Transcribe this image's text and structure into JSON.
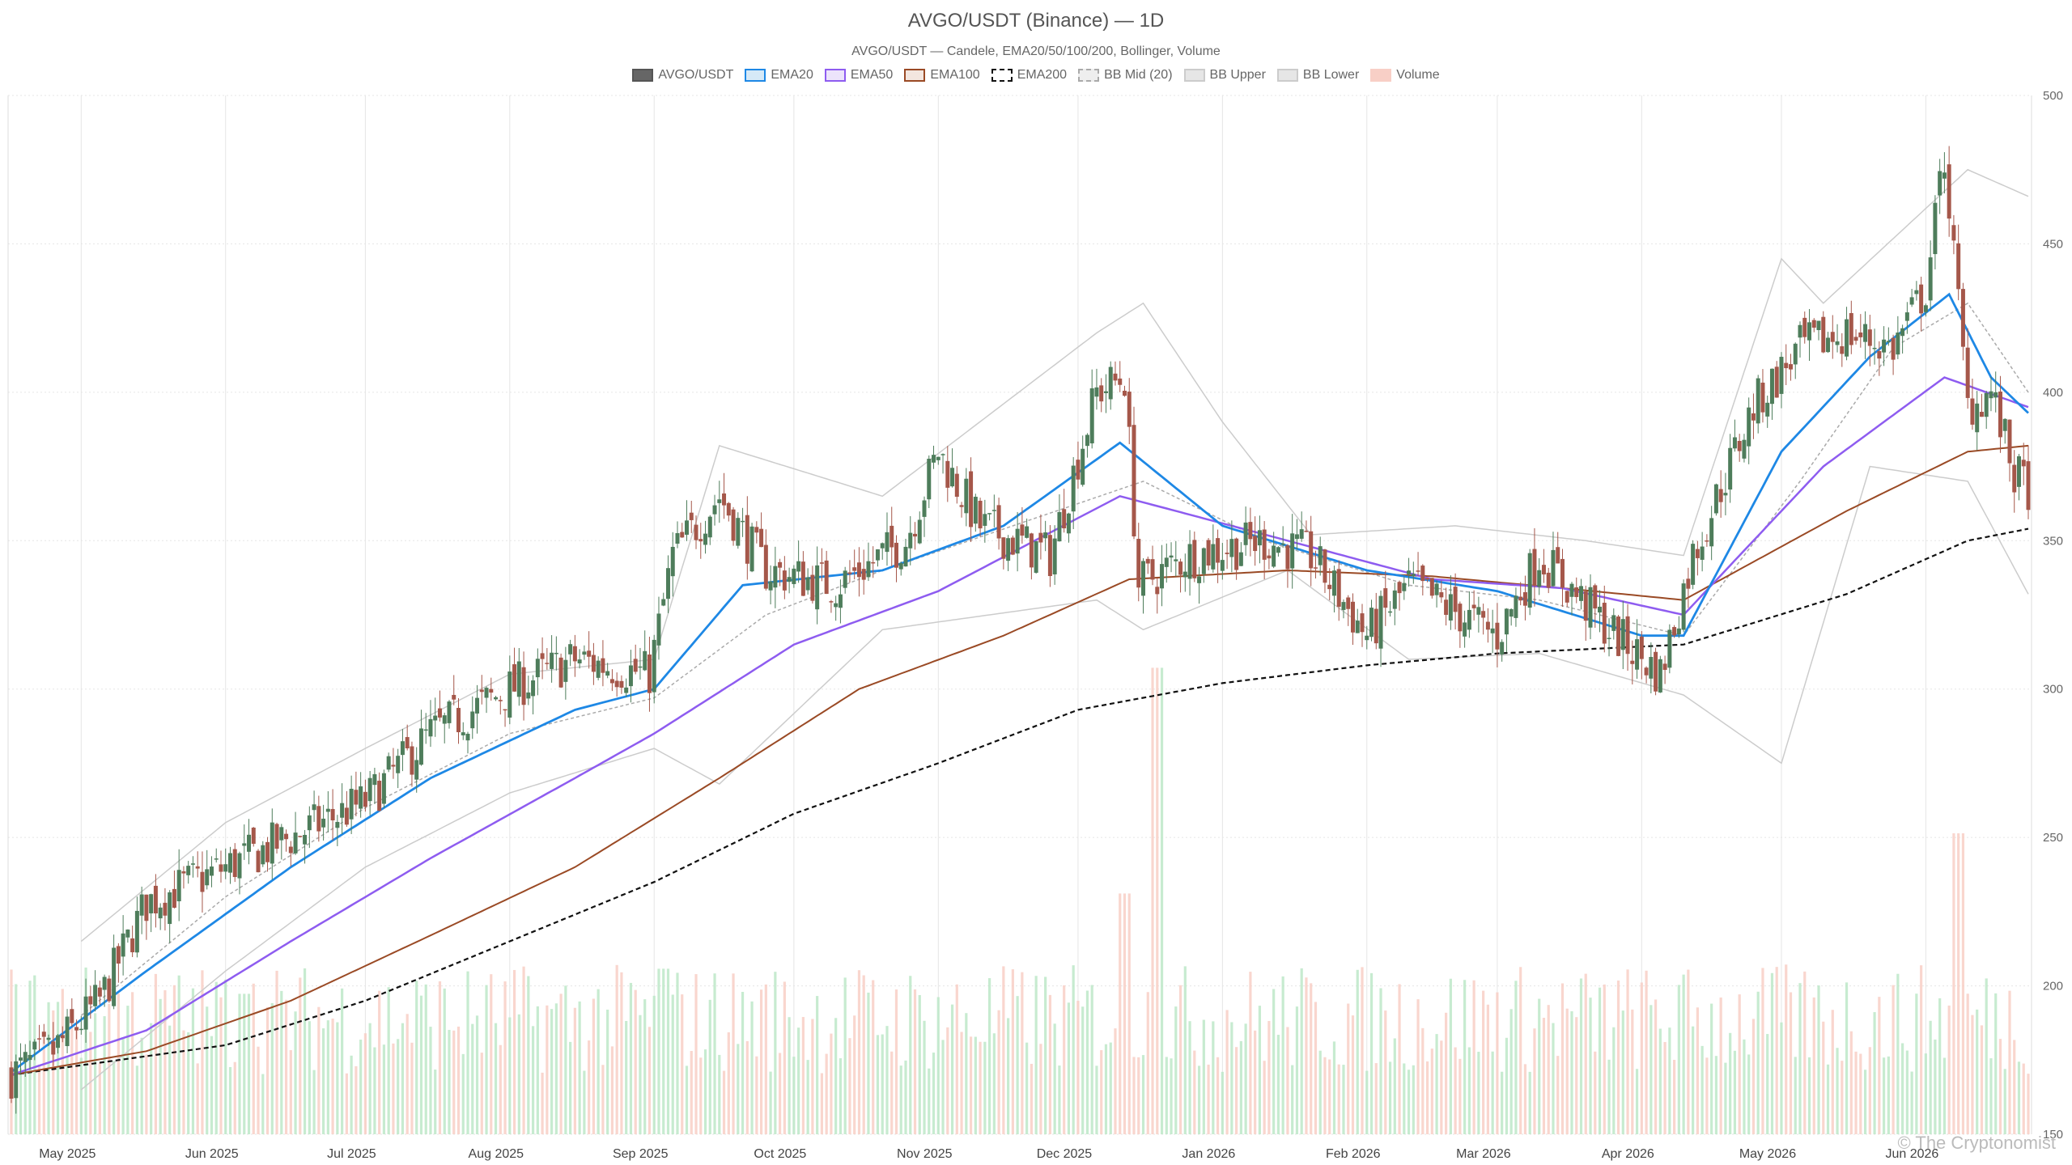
{
  "title": "AVGO/USDT (Binance) — 1D",
  "subtitle": "AVGO/USDT — Candele, EMA20/50/100/200, Bollinger, Volume",
  "watermark": "© The Cryptonomist",
  "legend": [
    {
      "label": "AVGO/USDT",
      "fill": "#666666",
      "border": "#555555",
      "style": "solid"
    },
    {
      "label": "EMA20",
      "fill": "#d6e9f7",
      "border": "#1e88e5",
      "style": "solid"
    },
    {
      "label": "EMA50",
      "fill": "#ece4fb",
      "border": "#8e5cf0",
      "style": "solid"
    },
    {
      "label": "EMA100",
      "fill": "#f3e6df",
      "border": "#9a4a25",
      "style": "solid"
    },
    {
      "label": "EMA200",
      "fill": "#ffffff",
      "border": "#111111",
      "style": "dashed"
    },
    {
      "label": "BB Mid (20)",
      "fill": "#eeeeee",
      "border": "#aaaaaa",
      "style": "dashed"
    },
    {
      "label": "BB Upper",
      "fill": "#e6e6e6",
      "border": "#cccccc",
      "style": "solid"
    },
    {
      "label": "BB Lower",
      "fill": "#e6e6e6",
      "border": "#cccccc",
      "style": "solid"
    },
    {
      "label": "Volume",
      "fill": "#f8cfc6",
      "border": "#f8cfc6",
      "style": "solid"
    }
  ],
  "colors": {
    "up": "#4e7d5b",
    "down": "#a5574a",
    "ema20": "#1e88e5",
    "ema50": "#8e5cf0",
    "ema100": "#9a4a25",
    "ema200": "#111111",
    "bb_mid": "#aaaaaa",
    "bb_band": "#cccccc",
    "vol_up": "#bde8c8",
    "vol_down": "#f8cfc6",
    "grid": "#e5e5e5"
  },
  "chart_data": {
    "type": "candlestick",
    "y_ticks": [
      150,
      200,
      250,
      300,
      350,
      400,
      450,
      500
    ],
    "ylim": [
      150,
      500
    ],
    "x_ticks": [
      "May 2025",
      "Jun 2025",
      "Jul 2025",
      "Aug 2025",
      "Sep 2025",
      "Oct 2025",
      "Nov 2025",
      "Dec 2025",
      "Jan 2026",
      "Feb 2026",
      "Mar 2026",
      "Apr 2026",
      "May 2026",
      "Jun 2026"
    ],
    "x_range": [
      "2025-04-16",
      "2026-06-23"
    ],
    "legend_position": "top-center",
    "grid": true,
    "price_anchors": [
      {
        "date": "2025-04-16",
        "close": 170
      },
      {
        "date": "2025-04-25",
        "close": 178
      },
      {
        "date": "2025-05-05",
        "close": 195
      },
      {
        "date": "2025-05-15",
        "close": 228
      },
      {
        "date": "2025-06-01",
        "close": 240
      },
      {
        "date": "2025-06-15",
        "close": 250
      },
      {
        "date": "2025-07-01",
        "close": 262
      },
      {
        "date": "2025-07-15",
        "close": 285
      },
      {
        "date": "2025-08-01",
        "close": 300
      },
      {
        "date": "2025-08-15",
        "close": 310
      },
      {
        "date": "2025-08-31",
        "close": 305
      },
      {
        "date": "2025-09-05",
        "close": 345
      },
      {
        "date": "2025-09-15",
        "close": 365
      },
      {
        "date": "2025-09-25",
        "close": 340
      },
      {
        "date": "2025-10-10",
        "close": 335
      },
      {
        "date": "2025-10-25",
        "close": 350
      },
      {
        "date": "2025-11-01",
        "close": 380
      },
      {
        "date": "2025-11-10",
        "close": 355
      },
      {
        "date": "2025-11-25",
        "close": 345
      },
      {
        "date": "2025-12-05",
        "close": 400
      },
      {
        "date": "2025-12-11",
        "close": 405
      },
      {
        "date": "2025-12-14",
        "close": 335
      },
      {
        "date": "2025-12-25",
        "close": 345
      },
      {
        "date": "2026-01-10",
        "close": 350
      },
      {
        "date": "2026-01-20",
        "close": 345
      },
      {
        "date": "2026-02-01",
        "close": 318
      },
      {
        "date": "2026-02-10",
        "close": 335
      },
      {
        "date": "2026-03-01",
        "close": 318
      },
      {
        "date": "2026-03-10",
        "close": 345
      },
      {
        "date": "2026-03-25",
        "close": 320
      },
      {
        "date": "2026-04-05",
        "close": 305
      },
      {
        "date": "2026-04-12",
        "close": 345
      },
      {
        "date": "2026-04-25",
        "close": 395
      },
      {
        "date": "2026-05-05",
        "close": 415
      },
      {
        "date": "2026-05-15",
        "close": 420
      },
      {
        "date": "2026-05-25",
        "close": 415
      },
      {
        "date": "2026-06-01",
        "close": 435
      },
      {
        "date": "2026-06-05",
        "close": 480
      },
      {
        "date": "2026-06-10",
        "close": 395
      },
      {
        "date": "2026-06-15",
        "close": 400
      },
      {
        "date": "2026-06-20",
        "close": 372
      },
      {
        "date": "2026-06-23",
        "close": 368
      }
    ],
    "ema_anchors": {
      "EMA20": [
        {
          "date": "2025-04-16",
          "value": 171
        },
        {
          "date": "2025-05-15",
          "value": 205
        },
        {
          "date": "2025-06-15",
          "value": 240
        },
        {
          "date": "2025-07-15",
          "value": 270
        },
        {
          "date": "2025-08-15",
          "value": 293
        },
        {
          "date": "2025-09-01",
          "value": 300
        },
        {
          "date": "2025-09-20",
          "value": 335
        },
        {
          "date": "2025-10-20",
          "value": 340
        },
        {
          "date": "2025-11-15",
          "value": 355
        },
        {
          "date": "2025-12-10",
          "value": 383
        },
        {
          "date": "2026-01-01",
          "value": 355
        },
        {
          "date": "2026-02-01",
          "value": 340
        },
        {
          "date": "2026-03-01",
          "value": 333
        },
        {
          "date": "2026-04-01",
          "value": 318
        },
        {
          "date": "2026-04-10",
          "value": 318
        },
        {
          "date": "2026-05-01",
          "value": 380
        },
        {
          "date": "2026-05-20",
          "value": 412
        },
        {
          "date": "2026-06-06",
          "value": 433
        },
        {
          "date": "2026-06-15",
          "value": 405
        },
        {
          "date": "2026-06-23",
          "value": 393
        }
      ],
      "EMA50": [
        {
          "date": "2025-04-16",
          "value": 170
        },
        {
          "date": "2025-05-15",
          "value": 185
        },
        {
          "date": "2025-06-15",
          "value": 215
        },
        {
          "date": "2025-07-15",
          "value": 243
        },
        {
          "date": "2025-08-15",
          "value": 270
        },
        {
          "date": "2025-09-01",
          "value": 285
        },
        {
          "date": "2025-10-01",
          "value": 315
        },
        {
          "date": "2025-11-01",
          "value": 333
        },
        {
          "date": "2025-12-10",
          "value": 365
        },
        {
          "date": "2026-01-15",
          "value": 350
        },
        {
          "date": "2026-02-15",
          "value": 337
        },
        {
          "date": "2026-03-15",
          "value": 334
        },
        {
          "date": "2026-04-10",
          "value": 325
        },
        {
          "date": "2026-05-10",
          "value": 375
        },
        {
          "date": "2026-06-05",
          "value": 405
        },
        {
          "date": "2026-06-23",
          "value": 395
        }
      ],
      "EMA100": [
        {
          "date": "2025-04-16",
          "value": 170
        },
        {
          "date": "2025-05-15",
          "value": 178
        },
        {
          "date": "2025-06-15",
          "value": 195
        },
        {
          "date": "2025-07-15",
          "value": 217
        },
        {
          "date": "2025-08-15",
          "value": 240
        },
        {
          "date": "2025-09-15",
          "value": 270
        },
        {
          "date": "2025-10-15",
          "value": 300
        },
        {
          "date": "2025-11-15",
          "value": 318
        },
        {
          "date": "2025-12-12",
          "value": 337
        },
        {
          "date": "2026-01-15",
          "value": 340
        },
        {
          "date": "2026-02-15",
          "value": 338
        },
        {
          "date": "2026-03-15",
          "value": 334
        },
        {
          "date": "2026-04-10",
          "value": 330
        },
        {
          "date": "2026-05-15",
          "value": 360
        },
        {
          "date": "2026-06-10",
          "value": 380
        },
        {
          "date": "2026-06-23",
          "value": 382
        }
      ],
      "EMA200": [
        {
          "date": "2025-04-16",
          "value": 170
        },
        {
          "date": "2025-06-01",
          "value": 180
        },
        {
          "date": "2025-07-01",
          "value": 195
        },
        {
          "date": "2025-08-01",
          "value": 215
        },
        {
          "date": "2025-09-01",
          "value": 235
        },
        {
          "date": "2025-10-01",
          "value": 258
        },
        {
          "date": "2025-11-01",
          "value": 275
        },
        {
          "date": "2025-12-01",
          "value": 293
        },
        {
          "date": "2026-01-01",
          "value": 302
        },
        {
          "date": "2026-02-01",
          "value": 308
        },
        {
          "date": "2026-03-01",
          "value": 312
        },
        {
          "date": "2026-04-10",
          "value": 315
        },
        {
          "date": "2026-05-15",
          "value": 332
        },
        {
          "date": "2026-06-10",
          "value": 350
        },
        {
          "date": "2026-06-23",
          "value": 354
        }
      ],
      "BB Mid (20)": [
        {
          "date": "2025-05-01",
          "value": 190
        },
        {
          "date": "2025-06-01",
          "value": 230
        },
        {
          "date": "2025-07-01",
          "value": 260
        },
        {
          "date": "2025-08-01",
          "value": 285
        },
        {
          "date": "2025-09-01",
          "value": 297
        },
        {
          "date": "2025-09-25",
          "value": 325
        },
        {
          "date": "2025-10-20",
          "value": 340
        },
        {
          "date": "2025-12-15",
          "value": 370
        },
        {
          "date": "2026-01-10",
          "value": 350
        },
        {
          "date": "2026-02-10",
          "value": 335
        },
        {
          "date": "2026-03-10",
          "value": 330
        },
        {
          "date": "2026-04-10",
          "value": 318
        },
        {
          "date": "2026-05-05",
          "value": 370
        },
        {
          "date": "2026-05-25",
          "value": 415
        },
        {
          "date": "2026-06-10",
          "value": 430
        },
        {
          "date": "2026-06-23",
          "value": 400
        }
      ],
      "BB Upper": [
        {
          "date": "2025-05-01",
          "value": 215
        },
        {
          "date": "2025-06-01",
          "value": 255
        },
        {
          "date": "2025-07-01",
          "value": 280
        },
        {
          "date": "2025-08-01",
          "value": 305
        },
        {
          "date": "2025-09-01",
          "value": 310
        },
        {
          "date": "2025-09-15",
          "value": 382
        },
        {
          "date": "2025-10-20",
          "value": 365
        },
        {
          "date": "2025-12-05",
          "value": 420
        },
        {
          "date": "2025-12-15",
          "value": 430
        },
        {
          "date": "2026-01-01",
          "value": 390
        },
        {
          "date": "2026-01-20",
          "value": 352
        },
        {
          "date": "2026-02-20",
          "value": 355
        },
        {
          "date": "2026-03-20",
          "value": 350
        },
        {
          "date": "2026-04-10",
          "value": 345
        },
        {
          "date": "2026-05-01",
          "value": 445
        },
        {
          "date": "2026-05-10",
          "value": 430
        },
        {
          "date": "2026-06-10",
          "value": 475
        },
        {
          "date": "2026-06-23",
          "value": 466
        }
      ],
      "BB Lower": [
        {
          "date": "2025-05-01",
          "value": 165
        },
        {
          "date": "2025-06-01",
          "value": 205
        },
        {
          "date": "2025-07-01",
          "value": 240
        },
        {
          "date": "2025-08-01",
          "value": 265
        },
        {
          "date": "2025-09-01",
          "value": 280
        },
        {
          "date": "2025-09-15",
          "value": 268
        },
        {
          "date": "2025-10-20",
          "value": 320
        },
        {
          "date": "2025-12-05",
          "value": 330
        },
        {
          "date": "2025-12-15",
          "value": 320
        },
        {
          "date": "2026-01-15",
          "value": 340
        },
        {
          "date": "2026-02-10",
          "value": 310
        },
        {
          "date": "2026-03-10",
          "value": 312
        },
        {
          "date": "2026-04-10",
          "value": 298
        },
        {
          "date": "2026-05-01",
          "value": 275
        },
        {
          "date": "2026-05-20",
          "value": 375
        },
        {
          "date": "2026-06-10",
          "value": 370
        },
        {
          "date": "2026-06-23",
          "value": 332
        }
      ]
    },
    "volume_spikes": [
      {
        "date": "2025-06-05",
        "value": 0.28
      },
      {
        "date": "2025-09-03",
        "value": 0.33
      },
      {
        "date": "2025-12-11",
        "value": 0.48
      },
      {
        "date": "2025-12-18",
        "value": 0.93
      },
      {
        "date": "2026-06-08",
        "value": 0.6
      }
    ]
  }
}
